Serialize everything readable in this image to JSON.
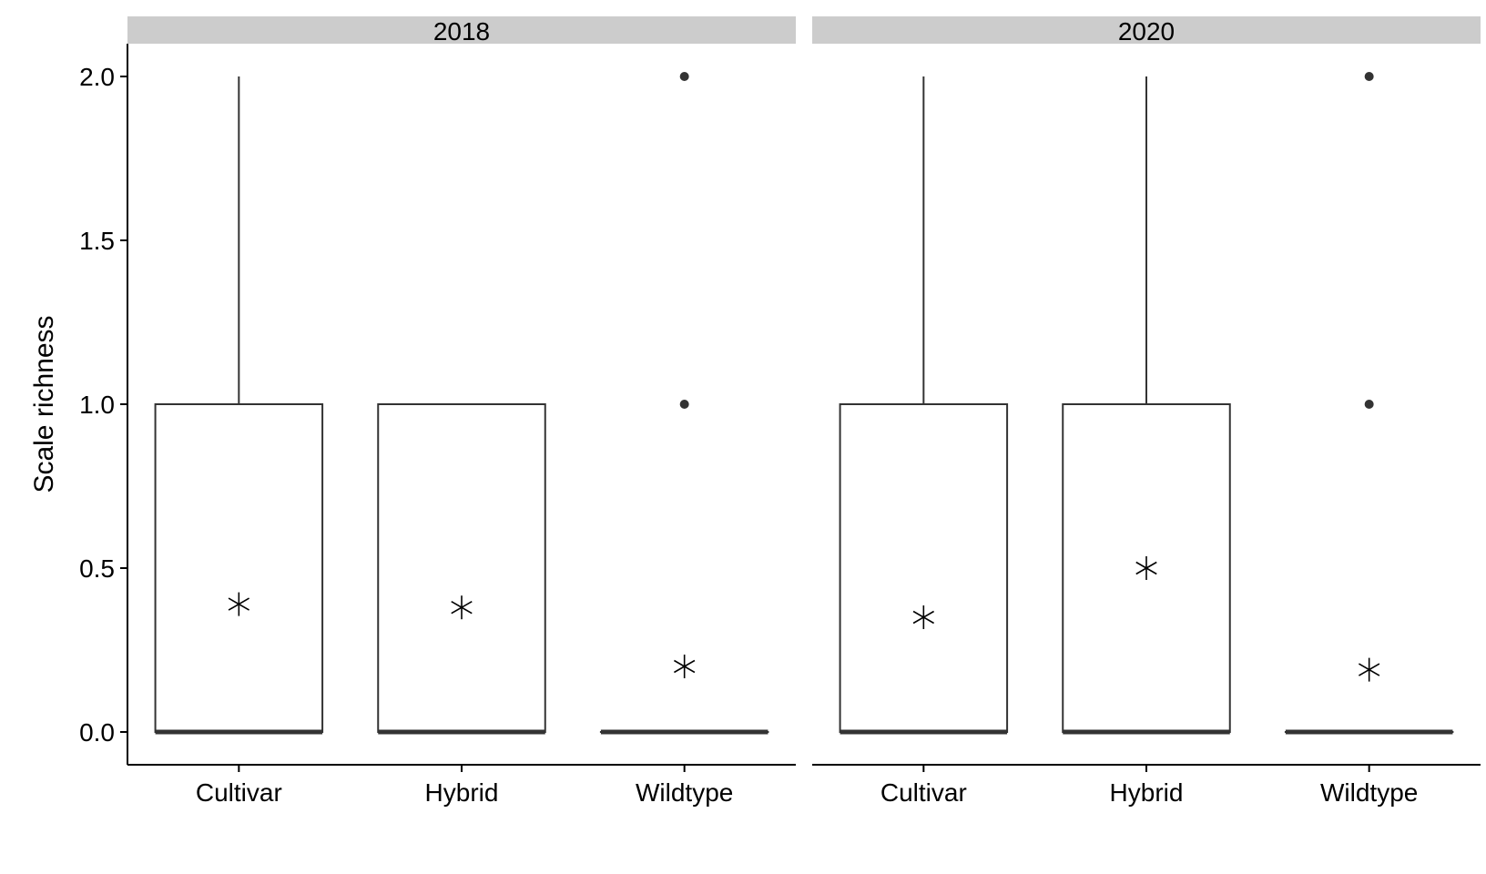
{
  "chart_data": {
    "type": "box",
    "ylabel": "Scale richness",
    "categories": [
      "Cultivar",
      "Hybrid",
      "Wildtype"
    ],
    "ylim": [
      -0.1,
      2.1
    ],
    "yticks": [
      0.0,
      0.5,
      1.0,
      1.5,
      2.0
    ],
    "ytick_labels": [
      "0.0",
      "0.5",
      "1.0",
      "1.5",
      "2.0"
    ],
    "grid": false,
    "facets": [
      {
        "label": "2018",
        "boxes": [
          {
            "category": "Cultivar",
            "whisker_low": 0,
            "q1": 0,
            "median": 0,
            "q3": 1,
            "whisker_high": 2,
            "mean": 0.39,
            "outliers": []
          },
          {
            "category": "Hybrid",
            "whisker_low": 0,
            "q1": 0,
            "median": 0,
            "q3": 1,
            "whisker_high": 1,
            "mean": 0.38,
            "outliers": []
          },
          {
            "category": "Wildtype",
            "whisker_low": 0,
            "q1": 0,
            "median": 0,
            "q3": 0,
            "whisker_high": 0,
            "mean": 0.2,
            "outliers": [
              1,
              2
            ]
          }
        ]
      },
      {
        "label": "2020",
        "boxes": [
          {
            "category": "Cultivar",
            "whisker_low": 0,
            "q1": 0,
            "median": 0,
            "q3": 1,
            "whisker_high": 2,
            "mean": 0.35,
            "outliers": []
          },
          {
            "category": "Hybrid",
            "whisker_low": 0,
            "q1": 0,
            "median": 0,
            "q3": 1,
            "whisker_high": 2,
            "mean": 0.5,
            "outliers": []
          },
          {
            "category": "Wildtype",
            "whisker_low": 0,
            "q1": 0,
            "median": 0,
            "q3": 0,
            "whisker_high": 0,
            "mean": 0.19,
            "outliers": [
              1,
              2
            ]
          }
        ]
      }
    ]
  }
}
